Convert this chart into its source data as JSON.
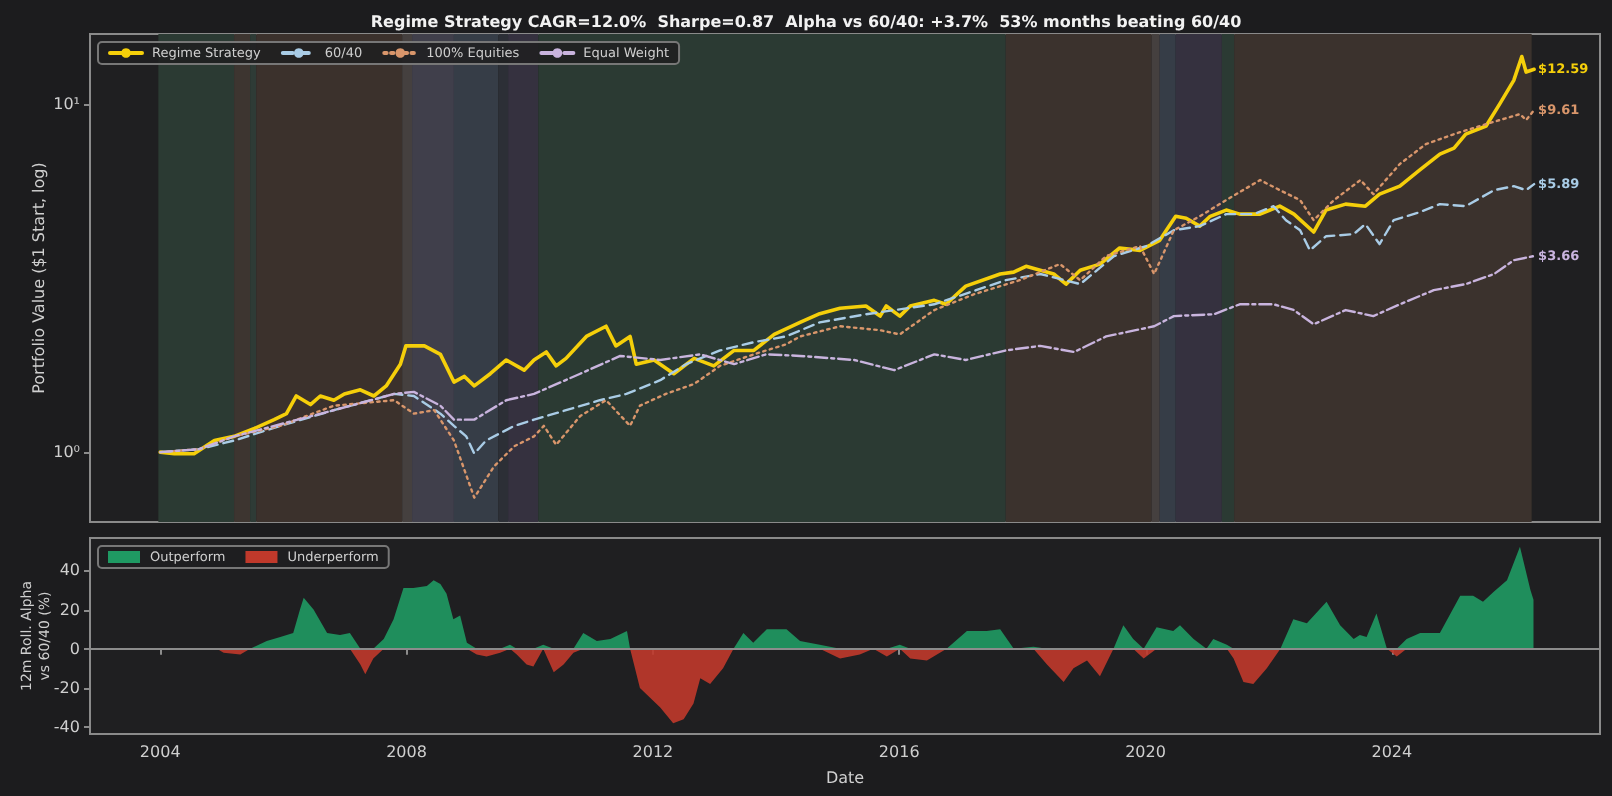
{
  "chart_data": [
    {
      "type": "line",
      "title": "Regime Strategy CAGR=12.0%  Sharpe=0.87  Alpha vs 60/40: +3.7%  53% months beating 60/40",
      "ylabel": "Portfolio Value ($1 Start, log)",
      "log": true,
      "legend": "top left",
      "tick_labels": "y",
      "marker": "none",
      "xlim": [
        2002.86,
        2027.38
      ],
      "ylim": [
        0.63,
        15.9
      ],
      "yticks": [
        {
          "value": 1,
          "label": "10⁰"
        },
        {
          "value": 10,
          "label": "10¹"
        }
      ],
      "series": [
        {
          "name": "Regime Strategy",
          "color": "#f5cf0a",
          "line_style": "solid",
          "x": [
            2004.0,
            2004.23,
            2004.55,
            2004.88,
            2005.2,
            2005.53,
            2005.85,
            2006.05,
            2006.21,
            2006.44,
            2006.6,
            2006.82,
            2006.99,
            2007.25,
            2007.47,
            2007.67,
            2007.9,
            2007.99,
            2008.29,
            2008.55,
            2008.77,
            2008.94,
            2009.1,
            2009.36,
            2009.62,
            2009.91,
            2010.07,
            2010.27,
            2010.43,
            2010.59,
            2010.92,
            2011.24,
            2011.4,
            2011.63,
            2011.73,
            2012.02,
            2012.34,
            2012.67,
            2012.99,
            2013.32,
            2013.64,
            2013.97,
            2014.39,
            2014.71,
            2015.04,
            2015.46,
            2015.69,
            2015.79,
            2016.01,
            2016.18,
            2016.57,
            2016.76,
            2017.08,
            2017.64,
            2017.86,
            2018.06,
            2018.29,
            2018.51,
            2018.71,
            2018.94,
            2019.26,
            2019.58,
            2019.91,
            2020.23,
            2020.49,
            2020.66,
            2020.88,
            2021.05,
            2021.31,
            2021.53,
            2021.86,
            2022.18,
            2022.41,
            2022.73,
            2022.93,
            2023.25,
            2023.57,
            2023.8,
            2024.13,
            2024.45,
            2024.78,
            2025.01,
            2025.2,
            2025.53,
            2025.75,
            2025.98,
            2026.11,
            2026.18,
            2026.31
          ],
          "values": [
            1.0,
            0.99,
            0.99,
            1.08,
            1.11,
            1.17,
            1.24,
            1.29,
            1.45,
            1.37,
            1.45,
            1.41,
            1.47,
            1.51,
            1.45,
            1.55,
            1.79,
            2.02,
            2.02,
            1.91,
            1.59,
            1.65,
            1.55,
            1.68,
            1.84,
            1.72,
            1.84,
            1.94,
            1.77,
            1.86,
            2.15,
            2.3,
            2.02,
            2.15,
            1.79,
            1.84,
            1.68,
            1.86,
            1.77,
            1.96,
            1.96,
            2.18,
            2.36,
            2.5,
            2.59,
            2.63,
            2.46,
            2.63,
            2.46,
            2.63,
            2.73,
            2.66,
            3.0,
            3.25,
            3.29,
            3.42,
            3.33,
            3.25,
            3.04,
            3.33,
            3.47,
            3.86,
            3.8,
            4.06,
            4.76,
            4.7,
            4.46,
            4.76,
            4.96,
            4.83,
            4.83,
            5.09,
            4.83,
            4.29,
            4.96,
            5.16,
            5.09,
            5.51,
            5.81,
            6.46,
            7.18,
            7.47,
            8.2,
            8.65,
            10,
            11.7,
            13.7,
            12.36,
            12.59
          ]
        },
        {
          "name": "60/40",
          "color": "#a9cce6",
          "line_style": "dashed",
          "x": [
            2004.0,
            2004.63,
            2005.2,
            2005.95,
            2006.82,
            2007.8,
            2008.12,
            2008.55,
            2008.77,
            2008.97,
            2009.1,
            2009.29,
            2009.75,
            2010.07,
            2010.59,
            2011.14,
            2011.57,
            2012.12,
            2012.54,
            2013.09,
            2013.64,
            2014.16,
            2014.71,
            2015.46,
            2016.57,
            2017.73,
            2018.29,
            2018.94,
            2019.49,
            2020.01,
            2020.46,
            2020.88,
            2021.31,
            2021.76,
            2022.08,
            2022.28,
            2022.51,
            2022.67,
            2022.93,
            2023.38,
            2023.57,
            2023.8,
            2024.03,
            2024.45,
            2024.78,
            2025.2,
            2025.66,
            2025.98,
            2026.18,
            2026.31
          ],
          "values": [
            1.0,
            1.02,
            1.08,
            1.19,
            1.32,
            1.47,
            1.45,
            1.29,
            1.19,
            1.11,
            0.99,
            1.08,
            1.19,
            1.24,
            1.32,
            1.41,
            1.47,
            1.61,
            1.79,
            1.96,
            2.07,
            2.15,
            2.36,
            2.49,
            2.66,
            3.12,
            3.25,
            3.04,
            3.66,
            3.91,
            4.34,
            4.46,
            4.83,
            4.83,
            5.09,
            4.64,
            4.34,
            3.8,
            4.17,
            4.23,
            4.52,
            3.96,
            4.64,
            4.89,
            5.16,
            5.09,
            5.66,
            5.81,
            5.66,
            5.89
          ]
        },
        {
          "name": "100% Equities",
          "color": "#d9966b",
          "line_style": "dotted",
          "x": [
            2004.0,
            2004.63,
            2005.2,
            2005.95,
            2006.82,
            2007.8,
            2008.12,
            2008.45,
            2008.77,
            2009.1,
            2009.42,
            2009.75,
            2010.07,
            2010.23,
            2010.43,
            2010.82,
            2011.24,
            2011.63,
            2011.79,
            2012.21,
            2012.67,
            2013.09,
            2013.64,
            2014.16,
            2014.39,
            2015.04,
            2015.69,
            2016.01,
            2016.57,
            2017.21,
            2017.96,
            2018.61,
            2018.94,
            2019.36,
            2019.91,
            2020.14,
            2020.46,
            2020.88,
            2021.31,
            2021.86,
            2022.18,
            2022.51,
            2022.73,
            2023.06,
            2023.49,
            2023.7,
            2024.13,
            2024.55,
            2025.01,
            2025.53,
            2026.08,
            2026.18,
            2026.31
          ],
          "values": [
            1.0,
            1.02,
            1.11,
            1.19,
            1.36,
            1.41,
            1.29,
            1.32,
            1.08,
            0.74,
            0.91,
            1.04,
            1.11,
            1.19,
            1.05,
            1.27,
            1.41,
            1.19,
            1.36,
            1.47,
            1.57,
            1.77,
            1.91,
            2.04,
            2.15,
            2.3,
            2.24,
            2.18,
            2.56,
            2.84,
            3.12,
            3.47,
            3.12,
            3.66,
            3.91,
            3.25,
            4.34,
            4.76,
            5.3,
            6.05,
            5.66,
            5.3,
            4.64,
            5.3,
            6.05,
            5.51,
            6.73,
            7.67,
            8.2,
            8.76,
            9.36,
            9.0,
            9.61
          ]
        },
        {
          "name": "Equal Weight",
          "color": "#c9b4de",
          "line_style": "dashdot",
          "x": [
            2004.0,
            2004.63,
            2005.2,
            2006.82,
            2007.8,
            2008.12,
            2008.55,
            2008.77,
            2009.1,
            2009.62,
            2010.07,
            2010.82,
            2011.47,
            2012.12,
            2012.77,
            2013.32,
            2013.84,
            2014.39,
            2015.27,
            2015.92,
            2016.57,
            2017.08,
            2017.73,
            2018.29,
            2018.84,
            2019.36,
            2020.14,
            2020.46,
            2021.11,
            2021.53,
            2022.08,
            2022.41,
            2022.73,
            2023.25,
            2023.7,
            2024.13,
            2024.68,
            2025.2,
            2025.66,
            2025.98,
            2026.31
          ],
          "values": [
            1.0,
            1.02,
            1.11,
            1.32,
            1.47,
            1.49,
            1.36,
            1.24,
            1.24,
            1.41,
            1.47,
            1.68,
            1.89,
            1.84,
            1.91,
            1.79,
            1.91,
            1.89,
            1.84,
            1.72,
            1.91,
            1.84,
            1.96,
            2.02,
            1.94,
            2.15,
            2.3,
            2.46,
            2.49,
            2.66,
            2.66,
            2.56,
            2.33,
            2.56,
            2.46,
            2.66,
            2.92,
            3.04,
            3.25,
            3.56,
            3.66
          ]
        }
      ],
      "bands": [
        {
          "axis": "x",
          "from": 2003.97,
          "to": 2005.2,
          "color": "#2b3a33"
        },
        {
          "axis": "x",
          "from": 2005.2,
          "to": 2005.46,
          "color": "#3d3530"
        },
        {
          "axis": "x",
          "from": 2005.46,
          "to": 2005.56,
          "color": "#2e3b36"
        },
        {
          "axis": "x",
          "from": 2005.56,
          "to": 2007.93,
          "color": "#3b312c"
        },
        {
          "axis": "x",
          "from": 2007.93,
          "to": 2008.09,
          "color": "#45403f"
        },
        {
          "axis": "x",
          "from": 2008.09,
          "to": 2008.77,
          "color": "#403f4b"
        },
        {
          "axis": "x",
          "from": 2008.77,
          "to": 2009.49,
          "color": "#363d47"
        },
        {
          "axis": "x",
          "from": 2009.49,
          "to": 2009.65,
          "color": "#2c2f36"
        },
        {
          "axis": "x",
          "from": 2009.65,
          "to": 2010.14,
          "color": "#35313f"
        },
        {
          "axis": "x",
          "from": 2010.14,
          "to": 2017.73,
          "color": "#2b3a33"
        },
        {
          "axis": "x",
          "from": 2017.73,
          "to": 2020.1,
          "color": "#3b322d"
        },
        {
          "axis": "x",
          "from": 2020.1,
          "to": 2020.23,
          "color": "#45403f"
        },
        {
          "axis": "x",
          "from": 2020.23,
          "to": 2020.49,
          "color": "#363d47"
        },
        {
          "axis": "x",
          "from": 2020.49,
          "to": 2021.24,
          "color": "#35313f"
        },
        {
          "axis": "x",
          "from": 2021.24,
          "to": 2021.44,
          "color": "#2b3a33"
        },
        {
          "axis": "x",
          "from": 2021.44,
          "to": 2026.27,
          "color": "#3b322d"
        }
      ],
      "annotations": [
        "$12.59",
        "$5.89",
        "$9.61",
        "$3.66"
      ]
    },
    {
      "type": "area",
      "xlabel": "Date",
      "ylabel": "12m Roll. Alpha\nvs 60/40 (%)",
      "legend": "top left",
      "xlim": [
        2002.86,
        2027.38
      ],
      "xticks": [
        2004,
        2008,
        2012,
        2016,
        2020,
        2024
      ],
      "ylim": [
        -43.5,
        56.5
      ],
      "yticks": [
        -40,
        -20,
        0,
        20,
        40
      ],
      "ref_lines": [
        {
          "axis": "y",
          "value": 0,
          "color": "#8c8c8c"
        }
      ],
      "x": [
        2004.92,
        2005.03,
        2005.3,
        2005.46,
        2005.73,
        2005.95,
        2006.16,
        2006.27,
        2006.33,
        2006.49,
        2006.71,
        2006.92,
        2007.08,
        2007.25,
        2007.33,
        2007.46,
        2007.63,
        2007.79,
        2007.95,
        2008.11,
        2008.33,
        2008.44,
        2008.55,
        2008.65,
        2008.76,
        2008.87,
        2008.98,
        2009.14,
        2009.3,
        2009.52,
        2009.68,
        2009.79,
        2009.95,
        2010.06,
        2010.22,
        2010.39,
        2010.55,
        2010.71,
        2010.87,
        2011.09,
        2011.31,
        2011.58,
        2011.63,
        2011.79,
        2012.12,
        2012.33,
        2012.5,
        2012.66,
        2012.77,
        2012.93,
        2013.14,
        2013.31,
        2013.47,
        2013.63,
        2013.85,
        2014.17,
        2014.39,
        2014.71,
        2015.04,
        2015.36,
        2015.58,
        2015.8,
        2016.01,
        2016.18,
        2016.45,
        2016.77,
        2017.1,
        2017.42,
        2017.64,
        2017.86,
        2018.18,
        2018.4,
        2018.67,
        2018.83,
        2019.05,
        2019.26,
        2019.48,
        2019.64,
        2019.8,
        2019.97,
        2020.18,
        2020.45,
        2020.56,
        2020.78,
        2020.99,
        2021.1,
        2021.32,
        2021.43,
        2021.59,
        2021.75,
        2021.97,
        2022.19,
        2022.4,
        2022.62,
        2022.94,
        2023.16,
        2023.38,
        2023.48,
        2023.59,
        2023.75,
        2023.92,
        2024.08,
        2024.24,
        2024.46,
        2024.78,
        2025.11,
        2025.32,
        2025.48,
        2025.65,
        2025.87,
        2026.08,
        2026.25,
        2026.3
      ],
      "series": [
        {
          "name": "Outperform",
          "color": "#1f9a63",
          "values": [
            0,
            0,
            0,
            0,
            4,
            6,
            8,
            20,
            26,
            20,
            8,
            7,
            8,
            0,
            0,
            0,
            5,
            15,
            31,
            31,
            32,
            35,
            33,
            28,
            15,
            17,
            3,
            0,
            0,
            0,
            2,
            0,
            0,
            0,
            2,
            0,
            0,
            0,
            8,
            4,
            5,
            9,
            0,
            0,
            0,
            0,
            0,
            0,
            0,
            0,
            0,
            0,
            8,
            3,
            10,
            10,
            4,
            2,
            0,
            0,
            0,
            0,
            2,
            0,
            0,
            0,
            9,
            9,
            10,
            0,
            1,
            0,
            0,
            0,
            0,
            0,
            0,
            12,
            5,
            0,
            11,
            9,
            12,
            5,
            0,
            5,
            2,
            0,
            0,
            0,
            0,
            0,
            15,
            13,
            24,
            12,
            5,
            7,
            6,
            18,
            0,
            0,
            5,
            8,
            8,
            27,
            27,
            24,
            29,
            35,
            52,
            30,
            25
          ]
        },
        {
          "name": "Underperform",
          "color": "#c0392b",
          "values": [
            0,
            -2,
            -3,
            0,
            0,
            0,
            0,
            0,
            0,
            0,
            0,
            0,
            0,
            -8,
            -13,
            -5,
            0,
            0,
            0,
            0,
            0,
            0,
            0,
            0,
            0,
            0,
            0,
            -3,
            -4,
            -2,
            0,
            -3,
            -8,
            -9,
            0,
            -12,
            -8,
            -2,
            0,
            0,
            0,
            0,
            0,
            -20,
            -30,
            -38,
            -36,
            -28,
            -15,
            -18,
            -10,
            0,
            0,
            0,
            0,
            0,
            0,
            0,
            -5,
            -3,
            0,
            -4,
            0,
            -5,
            -6,
            0,
            0,
            0,
            0,
            0,
            0,
            -8,
            -17,
            -10,
            -6,
            -14,
            0,
            0,
            0,
            -5,
            0,
            0,
            0,
            0,
            0,
            0,
            0,
            -5,
            -17,
            -18,
            -10,
            0,
            0,
            0,
            0,
            0,
            0,
            0,
            0,
            0,
            0,
            -4,
            0,
            0,
            0,
            0,
            0,
            0,
            0,
            0,
            0,
            0,
            0
          ]
        }
      ]
    }
  ]
}
